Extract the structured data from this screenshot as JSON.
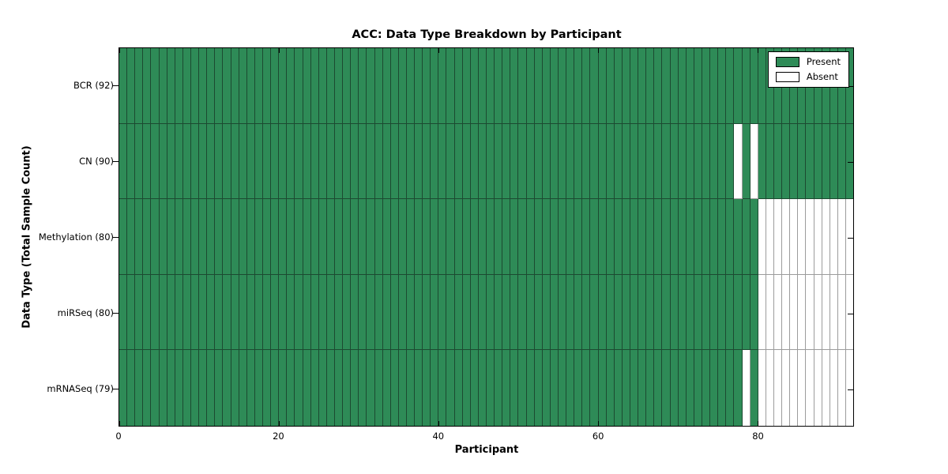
{
  "chart_data": {
    "type": "heatmap",
    "title": "ACC: Data Type Breakdown by Participant",
    "xlabel": "Participant",
    "ylabel": "Data Type (Total Sample Count)",
    "n_participants": 92,
    "x_range": [
      0,
      92
    ],
    "x_ticks": [
      0,
      20,
      40,
      60,
      80
    ],
    "grid": false,
    "rows": [
      {
        "data_type": "BCR",
        "label": "BCR (92)",
        "total": 92,
        "absent_indices": []
      },
      {
        "data_type": "CN",
        "label": "CN (90)",
        "total": 90,
        "absent_indices": [
          77,
          79
        ]
      },
      {
        "data_type": "Methylation",
        "label": "Methylation (80)",
        "total": 80,
        "absent_indices": [
          80,
          81,
          82,
          83,
          84,
          85,
          86,
          87,
          88,
          89,
          90,
          91
        ]
      },
      {
        "data_type": "miRSeq",
        "label": "miRSeq (80)",
        "total": 80,
        "absent_indices": [
          80,
          81,
          82,
          83,
          84,
          85,
          86,
          87,
          88,
          89,
          90,
          91
        ]
      },
      {
        "data_type": "mRNASeq",
        "label": "mRNASeq (79)",
        "total": 79,
        "absent_indices": [
          78,
          80,
          81,
          82,
          83,
          84,
          85,
          86,
          87,
          88,
          89,
          90,
          91
        ]
      }
    ],
    "legend": {
      "position": "top-right",
      "entries": [
        {
          "label": "Present",
          "color": "#2E8B57"
        },
        {
          "label": "Absent",
          "color": "#FFFFFF"
        }
      ]
    },
    "colors": {
      "present": "#2E8B57",
      "absent": "#FFFFFF",
      "grid_present": "#1C4A31",
      "grid_absent": "#9C9C9C",
      "spine": "#000000"
    }
  }
}
